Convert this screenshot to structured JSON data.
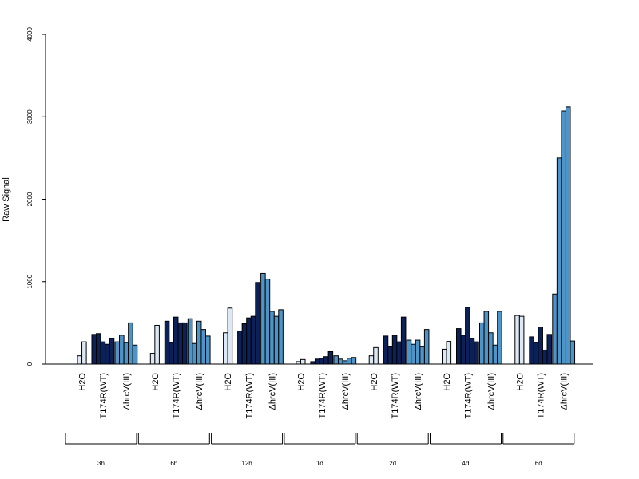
{
  "chart_data": {
    "type": "bar",
    "title": "",
    "xlabel": "",
    "ylabel": "Raw Signal",
    "ylim": [
      0,
      4000
    ],
    "yticks": [
      0,
      1000,
      2000,
      3000,
      4000
    ],
    "grid": false,
    "legend": "none",
    "colors": {
      "H2O": "#dde8f5",
      "T174R(WT)": "#0b2157",
      "ΔhrcV(III)": "#4f94c6"
    },
    "groups": [
      {
        "time": "3h",
        "categories": [
          {
            "name": "H2O",
            "values": [
              100,
              270
            ]
          },
          {
            "name": "T174R(WT)",
            "values": [
              360,
              370,
              270,
              240,
              310
            ]
          },
          {
            "name": "ΔhrcV(III)",
            "values": [
              270,
              350,
              260,
              500,
              230
            ]
          }
        ]
      },
      {
        "time": "6h",
        "categories": [
          {
            "name": "H2O",
            "values": [
              130,
              470
            ]
          },
          {
            "name": "T174R(WT)",
            "values": [
              520,
              260,
              570,
              500,
              500
            ]
          },
          {
            "name": "ΔhrcV(III)",
            "values": [
              550,
              250,
              520,
              420,
              340
            ]
          }
        ]
      },
      {
        "time": "12h",
        "categories": [
          {
            "name": "H2O",
            "values": [
              380,
              680
            ]
          },
          {
            "name": "T174R(WT)",
            "values": [
              400,
              490,
              560,
              580,
              990
            ]
          },
          {
            "name": "ΔhrcV(III)",
            "values": [
              1100,
              1030,
              640,
              580,
              660
            ]
          }
        ]
      },
      {
        "time": "1d",
        "categories": [
          {
            "name": "H2O",
            "values": [
              30,
              55
            ]
          },
          {
            "name": "T174R(WT)",
            "values": [
              30,
              60,
              70,
              90,
              150
            ]
          },
          {
            "name": "ΔhrcV(III)",
            "values": [
              100,
              60,
              40,
              70,
              80
            ]
          }
        ]
      },
      {
        "time": "2d",
        "categories": [
          {
            "name": "H2O",
            "values": [
              100,
              200
            ]
          },
          {
            "name": "T174R(WT)",
            "values": [
              340,
              210,
              350,
              270,
              570
            ]
          },
          {
            "name": "ΔhrcV(III)",
            "values": [
              290,
              240,
              290,
              210,
              420
            ]
          }
        ]
      },
      {
        "time": "4d",
        "categories": [
          {
            "name": "H2O",
            "values": [
              180,
              275
            ]
          },
          {
            "name": "T174R(WT)",
            "values": [
              430,
              350,
              690,
              310,
              270
            ]
          },
          {
            "name": "ΔhrcV(III)",
            "values": [
              500,
              640,
              380,
              230,
              640
            ]
          }
        ]
      },
      {
        "time": "6d",
        "categories": [
          {
            "name": "H2O",
            "values": [
              590,
              580
            ]
          },
          {
            "name": "T174R(WT)",
            "values": [
              330,
              260,
              450,
              170,
              360
            ]
          },
          {
            "name": "ΔhrcV(III)",
            "values": [
              850,
              2500,
              3070,
              3120,
              280
            ]
          }
        ]
      }
    ]
  }
}
